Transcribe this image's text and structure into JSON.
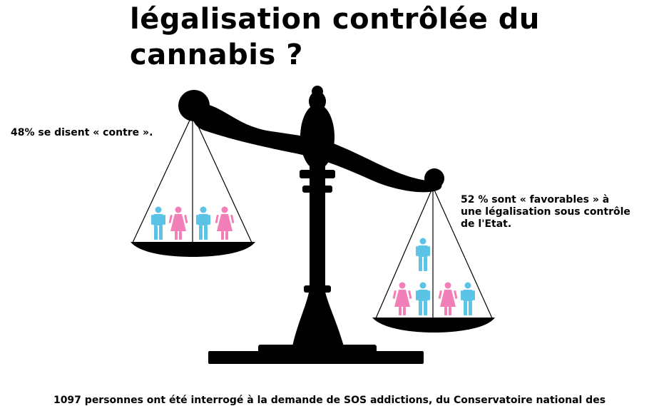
{
  "title": {
    "line1": "légalisation contrôlée du",
    "line2": "cannabis ?"
  },
  "left_pan": {
    "label": "48% se disent « contre ».",
    "figures": [
      "man",
      "woman",
      "man",
      "woman"
    ]
  },
  "right_pan": {
    "label_lines": [
      "52 % sont « favorables » à",
      "une légalisation sous contrôle",
      "de l'Etat."
    ],
    "figures": [
      "woman",
      "man",
      "man",
      "woman",
      "man"
    ]
  },
  "footer": {
    "text": "1097 personnes ont été interrogé à la demande de SOS addictions, du Conservatoire national des"
  },
  "colors": {
    "man": "#5bc3e6",
    "woman": "#f27fb8",
    "scale": "#000000"
  }
}
